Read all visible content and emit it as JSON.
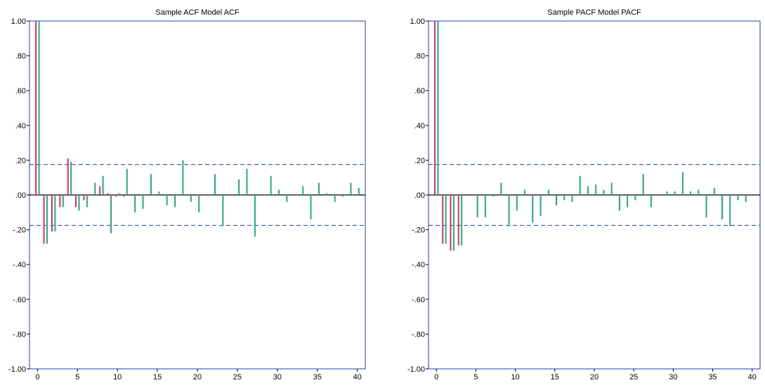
{
  "chart_data": [
    {
      "type": "bar",
      "title": "Sample ACF Model ACF",
      "ylim": [
        -1.0,
        1.0
      ],
      "xlim": [
        -1,
        41
      ],
      "y_ticks": [
        "1.00",
        ".80",
        ".60",
        ".40",
        ".20",
        ".00",
        "-.20",
        "-.40",
        "-.60",
        "-.80",
        "-1.00"
      ],
      "x_ticks": [
        "0",
        "5",
        "10",
        "15",
        "20",
        "25",
        "30",
        "35",
        "40"
      ],
      "confidence_band": 0.175,
      "colors": {
        "sample": "#22aa88",
        "model": "#e0304a",
        "frame": "#1f3fb0",
        "band": "#1f3fb0"
      },
      "series": [
        {
          "name": "Sample ACF",
          "values": [
            1.0,
            -0.28,
            -0.21,
            -0.07,
            0.19,
            -0.09,
            -0.07,
            0.07,
            0.11,
            -0.22,
            0.01,
            0.15,
            -0.1,
            -0.08,
            0.12,
            0.02,
            -0.06,
            -0.07,
            0.2,
            -0.04,
            -0.1,
            0.0,
            0.12,
            -0.18,
            0.0,
            0.09,
            0.15,
            -0.24,
            0.0,
            0.11,
            0.03,
            -0.04,
            0.0,
            0.05,
            -0.14,
            0.07,
            0.01,
            -0.04,
            -0.01,
            0.07,
            0.04
          ]
        },
        {
          "name": "Model ACF",
          "values": [
            1.0,
            -0.28,
            -0.21,
            -0.07,
            0.21,
            -0.07,
            -0.03,
            0.0,
            0.05,
            0.01,
            -0.01,
            -0.01,
            0.0,
            0.0,
            0.0,
            0.0,
            0.0,
            0.0,
            0.0,
            0.0,
            0.0,
            0.0,
            0.0,
            0.0,
            0.0,
            0.0,
            0.0,
            0.0,
            0.0,
            0.0,
            0.0,
            0.0,
            0.0,
            0.0,
            0.0,
            0.0,
            0.0,
            0.0,
            0.0,
            0.0,
            0.0
          ]
        }
      ]
    },
    {
      "type": "bar",
      "title": "Sample PACF Model PACF",
      "ylim": [
        -1.0,
        1.0
      ],
      "xlim": [
        -1,
        41
      ],
      "y_ticks": [
        "1.00",
        ".80",
        ".60",
        ".40",
        ".20",
        ".00",
        "-.20",
        "-.40",
        "-.60",
        "-.80",
        "-1.00"
      ],
      "x_ticks": [
        "0",
        "5",
        "10",
        "15",
        "20",
        "25",
        "30",
        "35",
        "40"
      ],
      "confidence_band": 0.175,
      "colors": {
        "sample": "#22aa88",
        "model": "#e0304a",
        "frame": "#1f3fb0",
        "band": "#1f3fb0"
      },
      "series": [
        {
          "name": "Sample PACF",
          "values": [
            1.0,
            -0.28,
            -0.32,
            -0.29,
            0.0,
            -0.13,
            -0.13,
            -0.01,
            0.07,
            -0.18,
            -0.09,
            0.03,
            -0.16,
            -0.12,
            0.03,
            -0.06,
            -0.03,
            -0.04,
            0.11,
            0.05,
            0.06,
            0.03,
            0.07,
            -0.09,
            -0.07,
            -0.03,
            0.12,
            -0.07,
            0.0,
            0.02,
            0.02,
            0.13,
            0.02,
            0.03,
            -0.13,
            0.04,
            -0.14,
            -0.18,
            -0.03,
            -0.04,
            0.0
          ]
        },
        {
          "name": "Model PACF",
          "values": [
            1.0,
            -0.28,
            -0.32,
            -0.29,
            0.0,
            0.0,
            0.0,
            0.0,
            0.0,
            0.0,
            0.0,
            0.0,
            0.0,
            0.0,
            0.0,
            0.0,
            0.0,
            0.0,
            0.0,
            0.0,
            0.0,
            0.0,
            0.0,
            0.0,
            0.0,
            0.0,
            0.0,
            0.0,
            0.0,
            0.0,
            0.0,
            0.0,
            0.0,
            0.0,
            0.0,
            0.0,
            0.0,
            0.0,
            0.0,
            0.0,
            0.0
          ]
        }
      ]
    }
  ]
}
